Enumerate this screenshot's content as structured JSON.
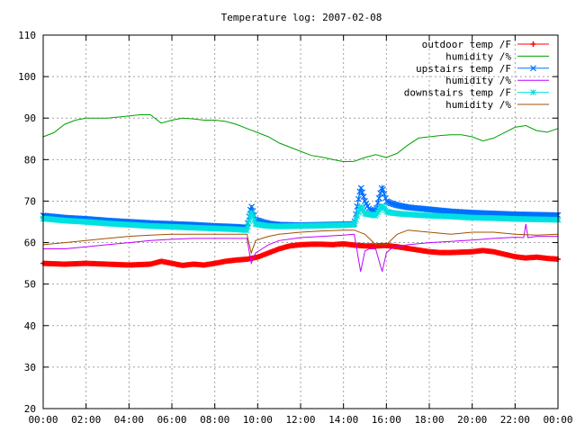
{
  "chart_data": {
    "type": "line",
    "title": "Temperature log: 2007-02-08",
    "xlabel": "",
    "ylabel": "",
    "xlim": [
      0,
      24
    ],
    "ylim": [
      20,
      110
    ],
    "x_ticks": [
      "00:00",
      "02:00",
      "04:00",
      "06:00",
      "08:00",
      "10:00",
      "12:00",
      "14:00",
      "16:00",
      "18:00",
      "20:00",
      "22:00",
      "00:00"
    ],
    "y_ticks": [
      20,
      30,
      40,
      50,
      60,
      70,
      80,
      90,
      100,
      110
    ],
    "grid": true,
    "legend_position": "top-right",
    "series": [
      {
        "name": "outdoor temp /F",
        "color": "#ff0000",
        "marker": "plus",
        "x": [
          0,
          1,
          2,
          3,
          4,
          5,
          5.5,
          6,
          6.5,
          7,
          7.5,
          8,
          8.5,
          9,
          9.5,
          10,
          10.5,
          11,
          11.5,
          12,
          12.5,
          13,
          13.5,
          14,
          14.5,
          15,
          15.5,
          16,
          16.5,
          17,
          17.5,
          18,
          18.5,
          19,
          19.5,
          20,
          20.5,
          21,
          21.5,
          22,
          22.5,
          23,
          23.5,
          24
        ],
        "y": [
          55,
          54.8,
          55,
          54.8,
          54.6,
          54.8,
          55.5,
          55,
          54.5,
          54.8,
          54.6,
          55,
          55.5,
          55.8,
          56,
          56.5,
          57.5,
          58.5,
          59.2,
          59.5,
          59.6,
          59.6,
          59.5,
          59.7,
          59.4,
          59.2,
          59.2,
          59.3,
          59,
          58.6,
          58.2,
          57.8,
          57.6,
          57.6,
          57.7,
          57.8,
          58.1,
          57.8,
          57.2,
          56.6,
          56.3,
          56.5,
          56.2,
          56
        ]
      },
      {
        "name": "humidity /%",
        "color": "#00a000",
        "marker": "none",
        "x": [
          0,
          0.5,
          1,
          1.5,
          2,
          3,
          4,
          4.5,
          5,
          5.5,
          6,
          6.5,
          7,
          7.5,
          8,
          8.5,
          9,
          9.5,
          10,
          10.5,
          11,
          11.5,
          12,
          12.5,
          13,
          13.5,
          14,
          14.5,
          15,
          15.5,
          16,
          16.5,
          17,
          17.5,
          18,
          18.5,
          19,
          19.5,
          20,
          20.5,
          21,
          21.5,
          22,
          22.5,
          23,
          23.5,
          24
        ],
        "y": [
          85.5,
          86.5,
          88.5,
          89.5,
          90,
          90,
          90.5,
          90.8,
          90.8,
          88.8,
          89.5,
          90,
          89.8,
          89.5,
          89.5,
          89.2,
          88.5,
          87.5,
          86.5,
          85.5,
          84,
          83,
          82,
          81,
          80.6,
          80,
          79.5,
          79.6,
          80.5,
          81.2,
          80.5,
          81.5,
          83.5,
          85.2,
          85.5,
          85.8,
          86,
          86,
          85.5,
          84.5,
          85.2,
          86.5,
          87.8,
          88.2,
          87,
          86.6,
          87.5
        ]
      },
      {
        "name": "upstairs temp /F",
        "color": "#0070ff",
        "marker": "x",
        "x": [
          0,
          1,
          2,
          3,
          4,
          5,
          6,
          7,
          8,
          9,
          9.5,
          9.7,
          9.9,
          10.2,
          10.5,
          11,
          12,
          13,
          14,
          14.5,
          14.8,
          15,
          15.2,
          15.5,
          15.8,
          16,
          16.2,
          16.5,
          17,
          18,
          19,
          20,
          21,
          22,
          23,
          24
        ],
        "y": [
          66.5,
          66,
          65.7,
          65.3,
          65,
          64.7,
          64.5,
          64.3,
          64,
          63.8,
          63.6,
          69,
          65.5,
          65,
          64.6,
          64.3,
          64.2,
          64.3,
          64.4,
          64.5,
          73.5,
          70,
          68,
          67.5,
          73.5,
          70,
          69.5,
          69,
          68.5,
          68,
          67.5,
          67.2,
          67,
          66.8,
          66.7,
          66.6
        ]
      },
      {
        "name": "humidity /%",
        "color": "#c000ff",
        "marker": "none",
        "x": [
          0,
          1,
          2,
          3,
          4,
          5,
          6,
          7,
          8,
          9,
          9.5,
          9.7,
          9.9,
          10.2,
          10.5,
          11,
          12,
          13,
          14,
          14.5,
          14.8,
          15,
          15.2,
          15.5,
          15.8,
          16,
          16.2,
          16.5,
          17,
          18,
          19,
          20,
          21,
          22,
          22.4,
          22.5,
          22.6,
          23,
          24
        ],
        "y": [
          58.5,
          58.5,
          59,
          59.5,
          60,
          60.5,
          60.8,
          61,
          61,
          61,
          61,
          55,
          57.5,
          58.5,
          59.5,
          60.5,
          61.2,
          61.5,
          61.8,
          62,
          53,
          58,
          58.5,
          58.5,
          53,
          57.5,
          58.5,
          59,
          59.5,
          60,
          60.3,
          60.6,
          61,
          61.3,
          61.2,
          64.5,
          61.2,
          61.5,
          61.5
        ]
      },
      {
        "name": "downstairs temp /F",
        "color": "#00e0e0",
        "marker": "star",
        "x": [
          0,
          1,
          2,
          3,
          4,
          5,
          6,
          7,
          8,
          9,
          9.5,
          9.7,
          9.9,
          10.2,
          10.5,
          11,
          12,
          13,
          14,
          14.5,
          14.8,
          15,
          15.2,
          15.5,
          15.8,
          16,
          16.2,
          16.5,
          17,
          18,
          19,
          20,
          21,
          22,
          23,
          24
        ],
        "y": [
          65.8,
          65.3,
          65,
          64.6,
          64.3,
          64,
          63.8,
          63.6,
          63.4,
          63.2,
          63,
          67.5,
          64.5,
          64.2,
          64,
          63.9,
          64,
          64.1,
          64.2,
          64.3,
          68.8,
          67,
          66.8,
          66.5,
          69,
          67.5,
          67.2,
          67,
          66.8,
          66.5,
          66.3,
          66,
          65.9,
          65.7,
          65.6,
          65.5
        ]
      },
      {
        "name": "humidity /%",
        "color": "#a05000",
        "marker": "none",
        "x": [
          0,
          1,
          2,
          3,
          4,
          5,
          6,
          7,
          8,
          9,
          9.5,
          9.7,
          9.9,
          10.2,
          10.5,
          11,
          12,
          13,
          14,
          14.5,
          15,
          15.5,
          16,
          16.5,
          17,
          18,
          19,
          20,
          21,
          22,
          23,
          24
        ],
        "y": [
          59.5,
          60,
          60.5,
          61,
          61.5,
          61.8,
          62,
          62,
          62,
          62,
          62,
          57.5,
          60.5,
          61,
          61.5,
          62,
          62.5,
          62.8,
          63,
          63,
          62,
          59.5,
          59.5,
          62,
          63,
          62.5,
          62,
          62.5,
          62.5,
          62,
          61.8,
          62
        ]
      }
    ]
  }
}
